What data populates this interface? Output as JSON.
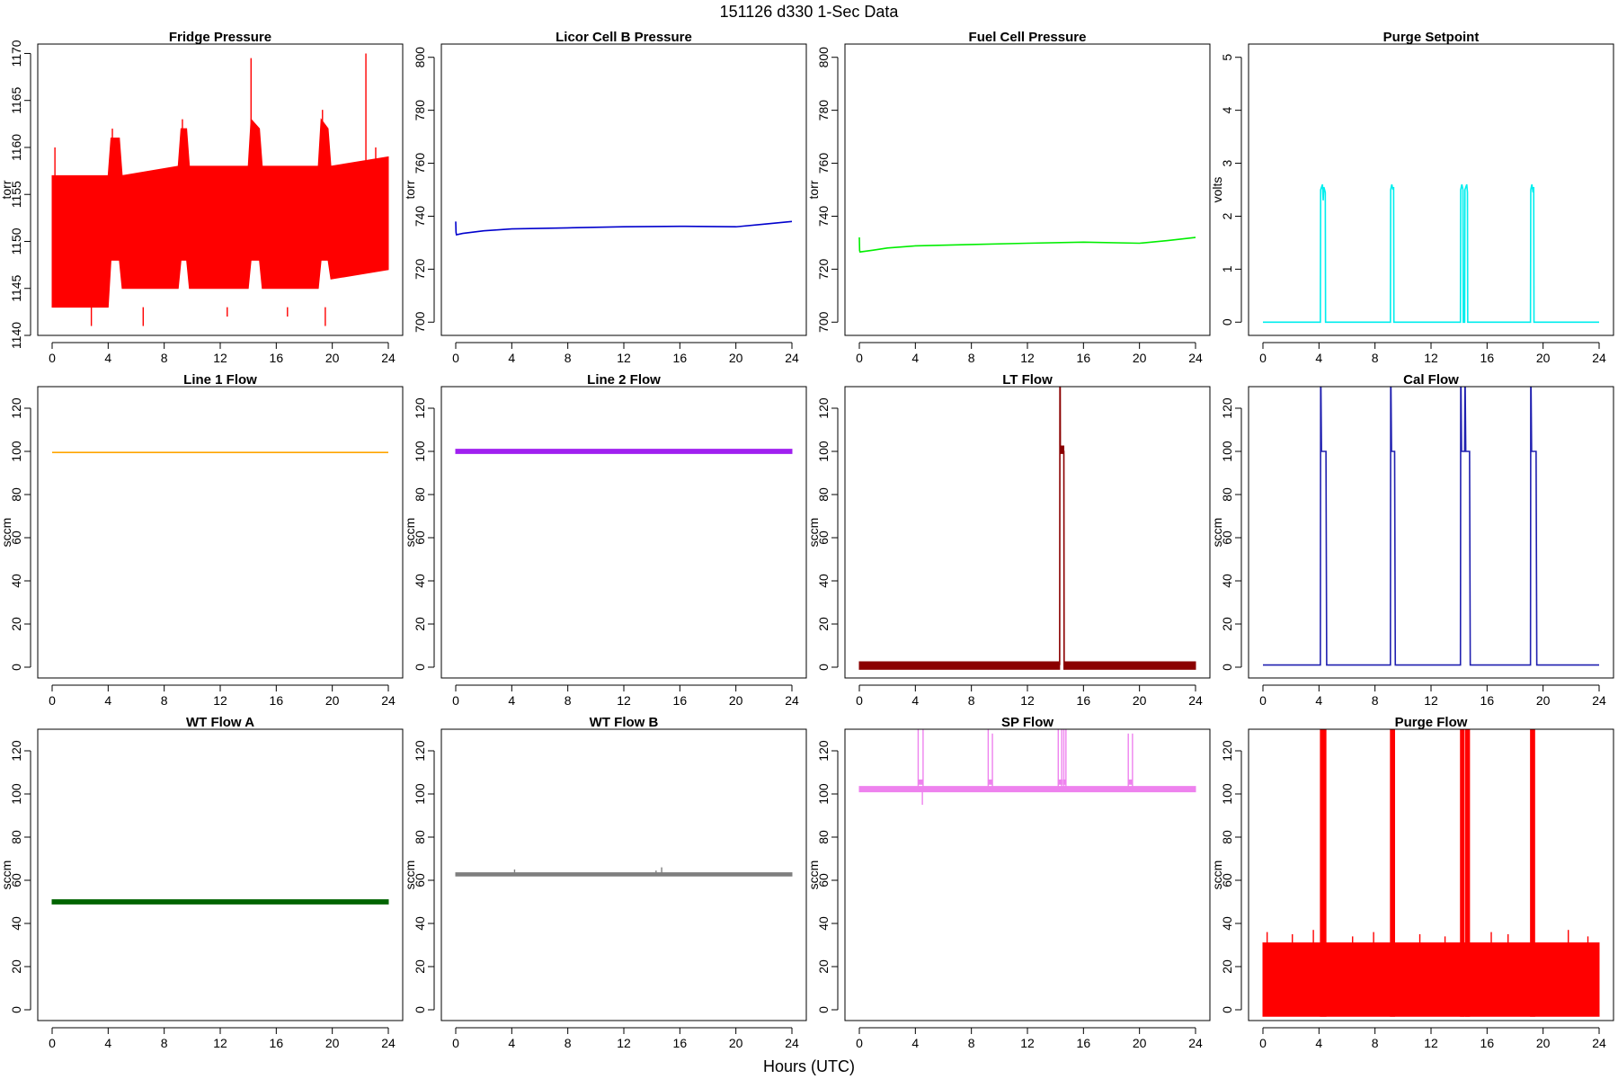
{
  "figure": {
    "title": "151126   d330   1-Sec Data",
    "xlabel": "Hours (UTC)"
  },
  "chart_data": [
    {
      "type": "line",
      "title": "Fridge Pressure",
      "ylabel": "torr",
      "color": "#ff0000",
      "xlim": [
        0,
        24
      ],
      "ylim": [
        1140,
        1171
      ],
      "xticks": [
        0,
        4,
        8,
        12,
        16,
        20,
        24
      ],
      "yticks": [
        1140,
        1145,
        1150,
        1155,
        1160,
        1165,
        1170
      ],
      "series": [
        {
          "style": "band",
          "x": [
            0,
            4.0,
            4.2,
            4.8,
            5.0,
            9.0,
            9.2,
            9.6,
            9.8,
            14.0,
            14.2,
            14.8,
            15.0,
            19.0,
            19.2,
            19.7,
            19.9,
            24
          ],
          "low": [
            1143,
            1143,
            1148,
            1148,
            1145,
            1145,
            1148,
            1148,
            1145,
            1145,
            1148,
            1148,
            1145,
            1145,
            1148,
            1148,
            1146,
            1147
          ],
          "high": [
            1157,
            1157,
            1161,
            1161,
            1157,
            1158,
            1162,
            1162,
            1158,
            1158,
            1163,
            1162,
            1158,
            1158,
            1163,
            1162,
            1158,
            1159
          ]
        },
        {
          "style": "spikes",
          "x": [
            0.2,
            2.8,
            4.3,
            6.5,
            9.3,
            12.5,
            14.2,
            14.3,
            16.8,
            19.3,
            19.5,
            22.4,
            23.1
          ],
          "y": [
            1160,
            1141,
            1162,
            1141,
            1163,
            1142,
            1169.5,
            1160,
            1142,
            1164,
            1141,
            1170,
            1160
          ]
        }
      ]
    },
    {
      "type": "line",
      "title": "Licor Cell B Pressure",
      "ylabel": "torr",
      "color": "#0000cd",
      "xlim": [
        0,
        24
      ],
      "ylim": [
        695,
        805
      ],
      "xticks": [
        0,
        4,
        8,
        12,
        16,
        20,
        24
      ],
      "yticks": [
        700,
        720,
        740,
        760,
        780,
        800
      ],
      "series": [
        {
          "style": "line",
          "x": [
            0,
            0.02,
            0.05,
            0.5,
            2,
            4,
            8,
            12,
            16,
            20,
            22,
            24
          ],
          "y": [
            738,
            734,
            733,
            733.5,
            734.5,
            735.2,
            735.6,
            736,
            736.2,
            736,
            737,
            738
          ]
        }
      ]
    },
    {
      "type": "line",
      "title": "Fuel Cell Pressure",
      "ylabel": "torr",
      "color": "#00ee00",
      "xlim": [
        0,
        24
      ],
      "ylim": [
        695,
        805
      ],
      "xticks": [
        0,
        4,
        8,
        12,
        16,
        20,
        24
      ],
      "yticks": [
        700,
        720,
        740,
        760,
        780,
        800
      ],
      "series": [
        {
          "style": "line",
          "x": [
            0,
            0.02,
            0.05,
            1,
            2,
            4,
            8,
            12,
            16,
            20,
            22,
            24
          ],
          "y": [
            732,
            727,
            726.5,
            727.2,
            728,
            728.8,
            729.3,
            729.8,
            730.2,
            729.8,
            730.8,
            732
          ]
        }
      ]
    },
    {
      "type": "line",
      "title": "Purge Setpoint",
      "ylabel": "volts",
      "color": "#00eeee",
      "xlim": [
        0,
        24
      ],
      "ylim": [
        -0.25,
        5.25
      ],
      "xticks": [
        0,
        4,
        8,
        12,
        16,
        20,
        24
      ],
      "yticks": [
        0,
        1,
        2,
        3,
        4,
        5
      ],
      "series": [
        {
          "style": "line",
          "x": [
            0,
            4.1,
            4.12,
            4.25,
            4.3,
            4.35,
            4.4,
            4.45,
            4.47,
            9.1,
            9.12,
            9.2,
            9.28,
            9.33,
            9.35,
            14.1,
            14.12,
            14.2,
            14.28,
            14.3,
            14.4,
            14.42,
            14.55,
            14.6,
            14.62,
            19.1,
            19.12,
            19.2,
            19.28,
            19.33,
            19.35,
            24
          ],
          "y": [
            0,
            0,
            2.5,
            2.6,
            2.3,
            2.55,
            2.5,
            2.45,
            0,
            0,
            2.5,
            2.6,
            2.5,
            2.55,
            0,
            0,
            2.5,
            2.6,
            2.5,
            0,
            0,
            2.5,
            2.6,
            2.45,
            0,
            0,
            2.5,
            2.6,
            2.45,
            2.55,
            0,
            0
          ]
        }
      ]
    },
    {
      "type": "line",
      "title": "Line 1 Flow",
      "ylabel": "sccm",
      "color": "#ffa500",
      "xlim": [
        0,
        24
      ],
      "ylim": [
        -5,
        130
      ],
      "xticks": [
        0,
        4,
        8,
        12,
        16,
        20,
        24
      ],
      "yticks": [
        0,
        20,
        40,
        60,
        80,
        100,
        120
      ],
      "series": [
        {
          "style": "line",
          "x": [
            0,
            24
          ],
          "y": [
            99.5,
            99.5
          ]
        }
      ]
    },
    {
      "type": "line",
      "title": "Line 2 Flow",
      "ylabel": "sccm",
      "color": "#a020f0",
      "xlim": [
        0,
        24
      ],
      "ylim": [
        -5,
        130
      ],
      "xticks": [
        0,
        4,
        8,
        12,
        16,
        20,
        24
      ],
      "yticks": [
        0,
        20,
        40,
        60,
        80,
        100,
        120
      ],
      "series": [
        {
          "style": "band",
          "x": [
            0,
            24
          ],
          "low": [
            99,
            99
          ],
          "high": [
            101,
            101
          ]
        }
      ]
    },
    {
      "type": "line",
      "title": "LT Flow",
      "ylabel": "sccm",
      "color": "#8b0000",
      "xlim": [
        0,
        24
      ],
      "ylim": [
        -5,
        130
      ],
      "xticks": [
        0,
        4,
        8,
        12,
        16,
        20,
        24
      ],
      "yticks": [
        0,
        20,
        40,
        60,
        80,
        100,
        120
      ],
      "series": [
        {
          "style": "band",
          "x": [
            0,
            14.3
          ],
          "low": [
            -1,
            -1
          ],
          "high": [
            2.5,
            2.5
          ]
        },
        {
          "style": "band",
          "x": [
            14.6,
            24
          ],
          "low": [
            -1,
            -1
          ],
          "high": [
            2.5,
            2.5
          ]
        },
        {
          "style": "band",
          "x": [
            14.35,
            14.6
          ],
          "low": [
            99,
            99
          ],
          "high": [
            102.5,
            102.5
          ]
        },
        {
          "style": "line",
          "x": [
            14.3,
            14.32,
            14.34,
            14.35,
            14.6,
            14.62,
            14.64
          ],
          "y": [
            1,
            130,
            130,
            100,
            100,
            1,
            1
          ]
        }
      ]
    },
    {
      "type": "line",
      "title": "Cal Flow",
      "ylabel": "sccm",
      "color": "#2020b0",
      "xlim": [
        0,
        24
      ],
      "ylim": [
        -5,
        130
      ],
      "xticks": [
        0,
        4,
        8,
        12,
        16,
        20,
        24
      ],
      "yticks": [
        0,
        20,
        40,
        60,
        80,
        100,
        120
      ],
      "series": [
        {
          "style": "line",
          "x": [
            0,
            4.1,
            4.12,
            4.14,
            4.18,
            4.5,
            4.55,
            9.1,
            9.12,
            9.14,
            9.18,
            9.4,
            9.45,
            14.1,
            14.12,
            14.14,
            14.18,
            14.4,
            14.42,
            14.44,
            14.48,
            14.75,
            14.8,
            19.1,
            19.12,
            19.14,
            19.18,
            19.5,
            19.55,
            24
          ],
          "y": [
            1,
            1,
            130,
            130,
            100,
            100,
            1,
            1,
            130,
            130,
            100,
            100,
            1,
            1,
            130,
            130,
            100,
            100,
            130,
            130,
            100,
            100,
            1,
            1,
            130,
            130,
            100,
            100,
            1,
            1
          ]
        }
      ]
    },
    {
      "type": "line",
      "title": "WT Flow A",
      "ylabel": "sccm",
      "color": "#006400",
      "xlim": [
        0,
        24
      ],
      "ylim": [
        -5,
        130
      ],
      "xticks": [
        0,
        4,
        8,
        12,
        16,
        20,
        24
      ],
      "yticks": [
        0,
        20,
        40,
        60,
        80,
        100,
        120
      ],
      "series": [
        {
          "style": "band",
          "x": [
            0,
            24
          ],
          "low": [
            49,
            49
          ],
          "high": [
            51,
            51
          ]
        }
      ]
    },
    {
      "type": "line",
      "title": "WT Flow B",
      "ylabel": "sccm",
      "color": "#7f7f7f",
      "xlim": [
        0,
        24
      ],
      "ylim": [
        -5,
        130
      ],
      "xticks": [
        0,
        4,
        8,
        12,
        16,
        20,
        24
      ],
      "yticks": [
        0,
        20,
        40,
        60,
        80,
        100,
        120
      ],
      "series": [
        {
          "style": "band",
          "x": [
            0,
            24
          ],
          "low": [
            62,
            62
          ],
          "high": [
            63.5,
            63.5
          ]
        },
        {
          "style": "spikes",
          "x": [
            4.2,
            14.3,
            14.7
          ],
          "y": [
            65,
            64.5,
            66
          ]
        }
      ]
    },
    {
      "type": "line",
      "title": "SP Flow",
      "ylabel": "sccm",
      "color": "#ee82ee",
      "xlim": [
        0,
        24
      ],
      "ylim": [
        -5,
        130
      ],
      "xticks": [
        0,
        4,
        8,
        12,
        16,
        20,
        24
      ],
      "yticks": [
        0,
        20,
        40,
        60,
        80,
        100,
        120
      ],
      "series": [
        {
          "style": "band",
          "x": [
            0,
            24
          ],
          "low": [
            101,
            101
          ],
          "high": [
            103.5,
            103.5
          ]
        },
        {
          "style": "band",
          "x": [
            4.2,
            4.55
          ],
          "low": [
            104.5,
            104.5
          ],
          "high": [
            106.5,
            106.5
          ]
        },
        {
          "style": "band",
          "x": [
            9.2,
            9.5
          ],
          "low": [
            104.5,
            104.5
          ],
          "high": [
            106.5,
            106.5
          ]
        },
        {
          "style": "band",
          "x": [
            14.2,
            14.45
          ],
          "low": [
            104.5,
            104.5
          ],
          "high": [
            106.5,
            106.5
          ]
        },
        {
          "style": "band",
          "x": [
            14.55,
            14.75
          ],
          "low": [
            104.5,
            104.5
          ],
          "high": [
            106.5,
            106.5
          ]
        },
        {
          "style": "band",
          "x": [
            19.2,
            19.5
          ],
          "low": [
            104.5,
            104.5
          ],
          "high": [
            106.5,
            106.5
          ]
        },
        {
          "style": "spikes",
          "x": [
            4.2,
            4.55,
            9.2,
            9.5,
            14.2,
            14.45,
            14.6,
            14.75,
            19.2,
            19.5
          ],
          "y": [
            130,
            130,
            130,
            128,
            130,
            130,
            130,
            130,
            128,
            128
          ]
        },
        {
          "style": "spikes",
          "x": [
            4.5
          ],
          "y": [
            95
          ]
        }
      ]
    },
    {
      "type": "line",
      "title": "Purge Flow",
      "ylabel": "sccm",
      "color": "#ff0000",
      "xlim": [
        0,
        24
      ],
      "ylim": [
        -5,
        130
      ],
      "xticks": [
        0,
        4,
        8,
        12,
        16,
        20,
        24
      ],
      "yticks": [
        0,
        20,
        40,
        60,
        80,
        100,
        120
      ],
      "series": [
        {
          "style": "band",
          "x": [
            0,
            24
          ],
          "low": [
            -3,
            -3
          ],
          "high": [
            31,
            31
          ]
        },
        {
          "style": "band",
          "x": [
            4.1,
            4.5
          ],
          "low": [
            -3,
            -3
          ],
          "high": [
            130,
            130
          ]
        },
        {
          "style": "band",
          "x": [
            9.1,
            9.4
          ],
          "low": [
            -3,
            -3
          ],
          "high": [
            130,
            130
          ]
        },
        {
          "style": "band",
          "x": [
            14.1,
            14.35
          ],
          "low": [
            -3,
            -3
          ],
          "high": [
            130,
            130
          ]
        },
        {
          "style": "band",
          "x": [
            14.45,
            14.75
          ],
          "low": [
            -3,
            -3
          ],
          "high": [
            130,
            130
          ]
        },
        {
          "style": "band",
          "x": [
            19.1,
            19.4
          ],
          "low": [
            -3,
            -3
          ],
          "high": [
            130,
            130
          ]
        },
        {
          "style": "spikes",
          "x": [
            0.3,
            2.1,
            3.6,
            6.4,
            7.9,
            11.2,
            13.0,
            16.3,
            17.5,
            21.8,
            23.2
          ],
          "y": [
            36,
            35,
            37,
            34,
            36,
            35,
            34,
            36,
            35,
            37,
            34
          ]
        }
      ]
    }
  ]
}
